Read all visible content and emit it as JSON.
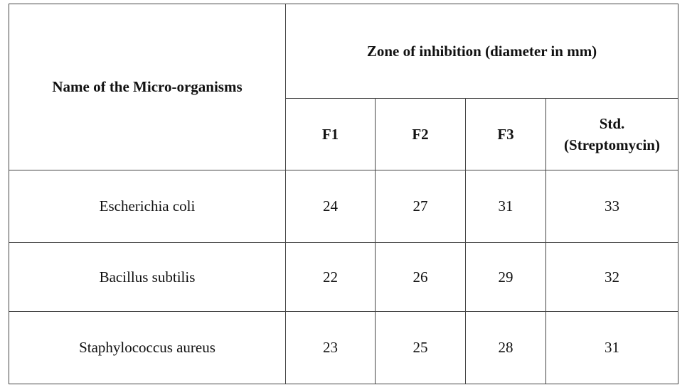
{
  "table": {
    "first_col_header": "Name of the Micro-organisms",
    "group_header": "Zone of inhibition (diameter in mm)",
    "columns": [
      "F1",
      "F2",
      "F3",
      "Std. (Streptomycin)"
    ],
    "rows": [
      [
        "Escherichia coli",
        24,
        27,
        31,
        33
      ],
      [
        "Bacillus subtilis",
        22,
        26,
        29,
        32
      ],
      [
        "Staphylococcus aureus",
        23,
        25,
        28,
        31
      ]
    ]
  }
}
